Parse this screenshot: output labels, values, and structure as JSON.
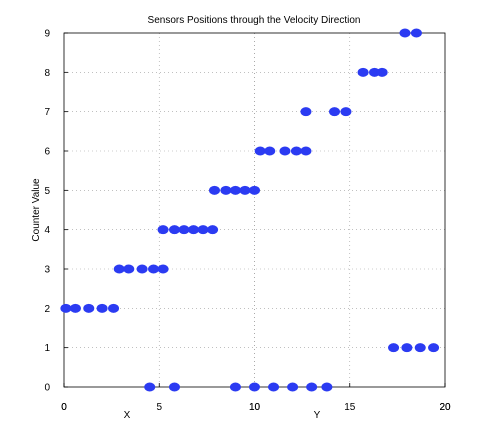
{
  "chart_data": {
    "type": "scatter",
    "title": "Sensors Positions through the Velocity Direction",
    "ylabel": "Counter Value",
    "ylim": [
      0,
      9
    ],
    "y_ticks": [
      "0",
      "1",
      "2",
      "3",
      "4",
      "5",
      "6",
      "7",
      "8",
      "9"
    ],
    "grid": true,
    "marker_color": "#2b3bf2",
    "x_axis_X": {
      "label": "X",
      "xlim": [
        0,
        20
      ],
      "ticks": [
        "0",
        "10",
        "20"
      ],
      "points": [
        {
          "x": 4.5,
          "y": 0
        },
        {
          "x": 5.8,
          "y": 0
        },
        {
          "x": 9.0,
          "y": 0
        },
        {
          "x": 10.0,
          "y": 0
        },
        {
          "x": 11.0,
          "y": 0
        },
        {
          "x": 12.0,
          "y": 0
        },
        {
          "x": 13.0,
          "y": 0
        },
        {
          "x": 13.8,
          "y": 0
        },
        {
          "x": 17.3,
          "y": 1
        },
        {
          "x": 18.0,
          "y": 1
        },
        {
          "x": 18.7,
          "y": 1
        },
        {
          "x": 19.4,
          "y": 1
        }
      ]
    },
    "x_axis_Y": {
      "label": "Y",
      "xlim": [
        0,
        20
      ],
      "ticks": [
        "0",
        "5",
        "10",
        "15",
        "20"
      ],
      "points": [
        {
          "x": 0.1,
          "y": 2
        },
        {
          "x": 0.6,
          "y": 2
        },
        {
          "x": 1.3,
          "y": 2
        },
        {
          "x": 2.0,
          "y": 2
        },
        {
          "x": 2.6,
          "y": 2
        },
        {
          "x": 2.9,
          "y": 3
        },
        {
          "x": 3.4,
          "y": 3
        },
        {
          "x": 4.1,
          "y": 3
        },
        {
          "x": 4.7,
          "y": 3
        },
        {
          "x": 5.2,
          "y": 3
        },
        {
          "x": 5.2,
          "y": 4
        },
        {
          "x": 5.8,
          "y": 4
        },
        {
          "x": 6.3,
          "y": 4
        },
        {
          "x": 6.8,
          "y": 4
        },
        {
          "x": 7.3,
          "y": 4
        },
        {
          "x": 7.8,
          "y": 4
        },
        {
          "x": 7.9,
          "y": 5
        },
        {
          "x": 8.5,
          "y": 5
        },
        {
          "x": 9.0,
          "y": 5
        },
        {
          "x": 9.5,
          "y": 5
        },
        {
          "x": 10.0,
          "y": 5
        },
        {
          "x": 10.3,
          "y": 6
        },
        {
          "x": 10.8,
          "y": 6
        },
        {
          "x": 11.6,
          "y": 6
        },
        {
          "x": 12.2,
          "y": 6
        },
        {
          "x": 12.7,
          "y": 6
        },
        {
          "x": 12.7,
          "y": 7
        },
        {
          "x": 14.2,
          "y": 7
        },
        {
          "x": 14.8,
          "y": 7
        },
        {
          "x": 15.7,
          "y": 8
        },
        {
          "x": 16.3,
          "y": 8
        },
        {
          "x": 16.7,
          "y": 8
        },
        {
          "x": 17.9,
          "y": 9
        },
        {
          "x": 18.5,
          "y": 9
        }
      ]
    }
  }
}
